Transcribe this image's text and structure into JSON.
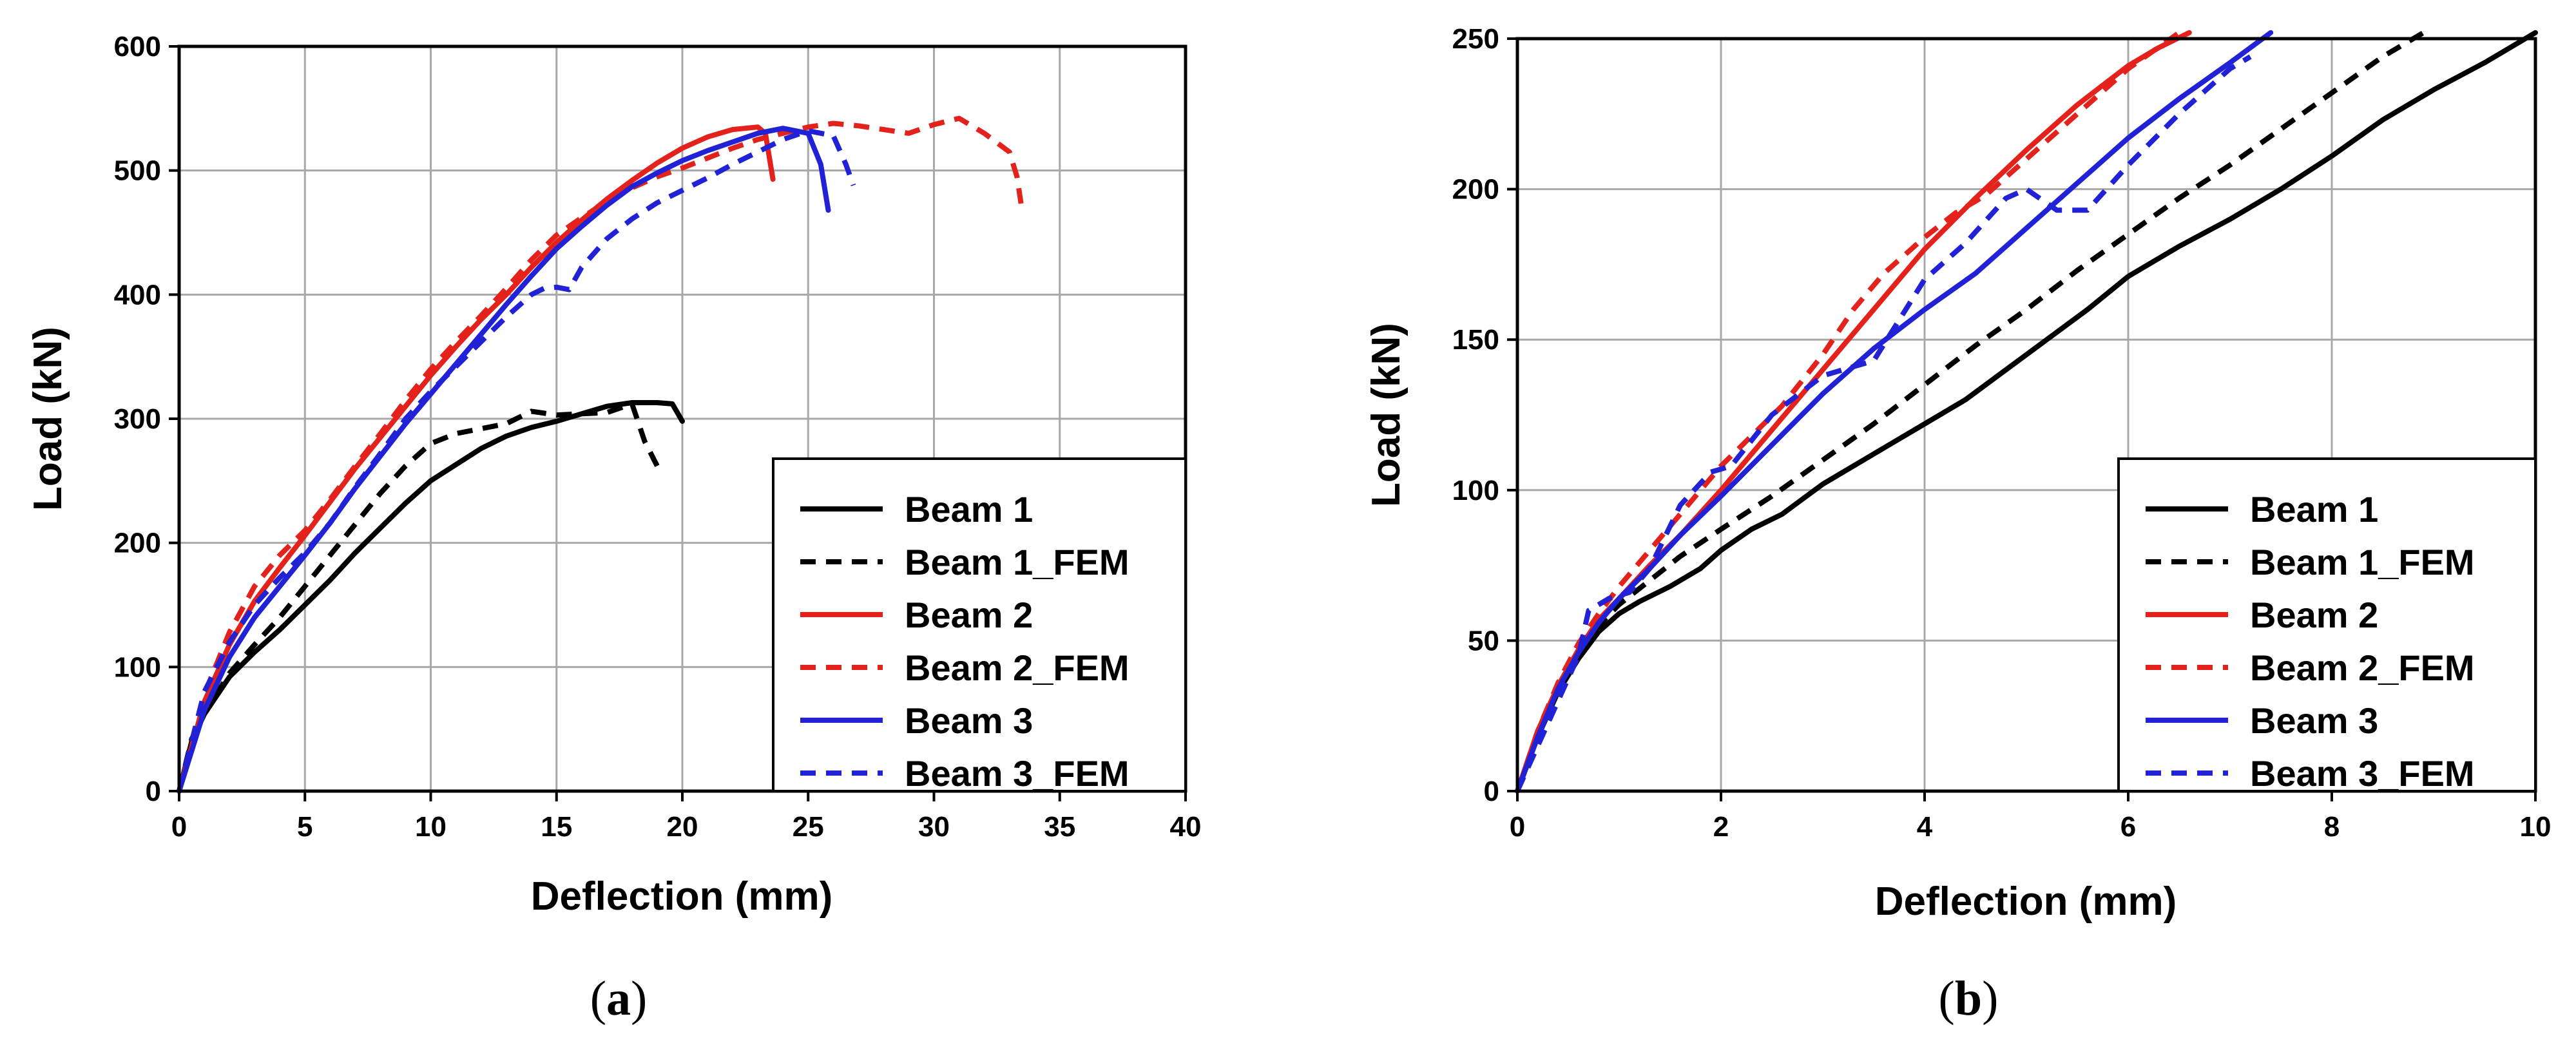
{
  "colors": {
    "black": "#000000",
    "red": "#e3221c",
    "blue": "#2122d6"
  },
  "panels": [
    {
      "label_open": "(",
      "label_letter": "a",
      "label_close": ")"
    },
    {
      "label_open": "(",
      "label_letter": "b",
      "label_close": ")"
    }
  ],
  "chart_data": [
    {
      "type": "line",
      "xlabel": "Deflection (mm)",
      "ylabel": "Load (kN)",
      "xlim": [
        0,
        40
      ],
      "ylim": [
        0,
        600
      ],
      "xticks": [
        0,
        5,
        10,
        15,
        20,
        25,
        30,
        35,
        40
      ],
      "yticks": [
        0,
        100,
        200,
        300,
        400,
        500,
        600
      ],
      "grid": true,
      "legend_position": "bottom-right",
      "series": [
        {
          "name": "Beam 1",
          "color": "#000000",
          "dash": "solid",
          "x": [
            0,
            0.5,
            1,
            2,
            3,
            4,
            5,
            6,
            7,
            8,
            9,
            10,
            11,
            12,
            13,
            14,
            15,
            16,
            17,
            18,
            19,
            19.6,
            20
          ],
          "y": [
            0,
            40,
            62,
            92,
            112,
            130,
            150,
            170,
            192,
            212,
            232,
            250,
            263,
            276,
            286,
            293,
            298,
            304,
            310,
            313,
            313,
            312,
            298
          ]
        },
        {
          "name": "Beam 1_FEM",
          "color": "#000000",
          "dash": "dashed",
          "x": [
            0,
            0.5,
            1,
            2,
            3,
            4,
            5,
            6,
            7,
            8,
            9,
            10,
            11,
            12,
            13,
            14,
            15,
            16,
            17,
            18,
            18.5,
            19
          ],
          "y": [
            0,
            42,
            62,
            95,
            118,
            140,
            165,
            190,
            215,
            240,
            262,
            280,
            288,
            292,
            296,
            306,
            303,
            304,
            305,
            312,
            282,
            262
          ]
        },
        {
          "name": "Beam 2",
          "color": "#e3221c",
          "dash": "solid",
          "x": [
            0,
            1,
            2,
            3,
            4,
            5,
            6,
            7,
            8,
            9,
            10,
            11,
            12,
            13,
            14,
            15,
            16,
            17,
            18,
            19,
            20,
            21,
            22,
            23,
            23.3,
            23.6
          ],
          "y": [
            0,
            72,
            118,
            153,
            180,
            206,
            233,
            260,
            285,
            310,
            335,
            358,
            380,
            400,
            422,
            442,
            460,
            477,
            492,
            506,
            518,
            527,
            533,
            535,
            530,
            493
          ]
        },
        {
          "name": "Beam 2_FEM",
          "color": "#e3221c",
          "dash": "dashed",
          "x": [
            0,
            1,
            2,
            3,
            4,
            5,
            6,
            7,
            8,
            9,
            10,
            11,
            12,
            13,
            14,
            15,
            16,
            17,
            18,
            19,
            20,
            21,
            22,
            23,
            24,
            25,
            26,
            27,
            28,
            29,
            30,
            31,
            32,
            33,
            33.3,
            33.5
          ],
          "y": [
            0,
            78,
            128,
            165,
            190,
            210,
            235,
            262,
            288,
            315,
            340,
            362,
            383,
            405,
            428,
            448,
            462,
            475,
            486,
            495,
            502,
            510,
            518,
            525,
            530,
            535,
            538,
            536,
            533,
            530,
            537,
            542,
            530,
            515,
            495,
            468
          ]
        },
        {
          "name": "Beam 3",
          "color": "#2122d6",
          "dash": "solid",
          "x": [
            0,
            1,
            2,
            3,
            4,
            5,
            6,
            7,
            8,
            9,
            10,
            11,
            12,
            13,
            14,
            15,
            16,
            17,
            18,
            19,
            20,
            21,
            22,
            23,
            24,
            25,
            25.5,
            25.8
          ],
          "y": [
            0,
            65,
            108,
            140,
            165,
            190,
            216,
            244,
            270,
            296,
            320,
            344,
            368,
            392,
            415,
            437,
            455,
            472,
            487,
            498,
            508,
            516,
            523,
            530,
            534,
            530,
            505,
            468
          ]
        },
        {
          "name": "Beam 3_FEM",
          "color": "#2122d6",
          "dash": "dashed",
          "x": [
            0,
            1,
            2,
            3,
            4,
            5,
            6,
            7,
            8,
            9,
            10,
            11,
            12,
            13,
            14,
            14.5,
            15,
            15.5,
            16,
            17,
            18,
            19,
            20,
            21,
            22,
            23,
            24,
            25,
            26,
            26.5,
            26.8
          ],
          "y": [
            0,
            80,
            120,
            150,
            172,
            192,
            216,
            245,
            272,
            300,
            322,
            342,
            362,
            382,
            400,
            405,
            406,
            404,
            422,
            445,
            461,
            474,
            484,
            494,
            505,
            515,
            525,
            532,
            528,
            505,
            488
          ]
        }
      ]
    },
    {
      "type": "line",
      "xlabel": "Deflection (mm)",
      "ylabel": "Load (kN)",
      "xlim": [
        0,
        10
      ],
      "ylim": [
        0,
        250
      ],
      "xticks": [
        0,
        2,
        4,
        6,
        8,
        10
      ],
      "yticks": [
        0,
        50,
        100,
        150,
        200,
        250
      ],
      "grid": true,
      "legend_position": "bottom-right",
      "series": [
        {
          "name": "Beam 1",
          "color": "#000000",
          "dash": "solid",
          "x": [
            0,
            0.2,
            0.4,
            0.6,
            0.8,
            1.0,
            1.2,
            1.5,
            1.8,
            2.0,
            2.3,
            2.6,
            2.8,
            3.0,
            3.5,
            4.0,
            4.4,
            4.8,
            5.2,
            5.6,
            6.0,
            6.5,
            7.0,
            7.5,
            8.0,
            8.5,
            9.0,
            9.5,
            10.0
          ],
          "y": [
            0,
            18,
            33,
            44,
            53,
            59,
            63,
            68,
            74,
            80,
            87,
            92,
            97,
            102,
            112,
            122,
            130,
            140,
            150,
            160,
            171,
            181,
            190,
            200,
            211,
            223,
            233,
            242,
            252
          ]
        },
        {
          "name": "Beam 1_FEM",
          "color": "#000000",
          "dash": "dashed",
          "x": [
            0,
            0.2,
            0.4,
            0.6,
            0.8,
            1.0,
            1.3,
            1.6,
            2.0,
            2.5,
            3.0,
            3.5,
            4.0,
            4.5,
            5.0,
            5.5,
            6.0,
            6.5,
            7.0,
            7.5,
            8.0,
            8.5,
            8.9
          ],
          "y": [
            0,
            18,
            33,
            45,
            55,
            62,
            70,
            78,
            87,
            98,
            110,
            122,
            135,
            148,
            160,
            173,
            185,
            197,
            208,
            220,
            232,
            244,
            252
          ]
        },
        {
          "name": "Beam 2",
          "color": "#e3221c",
          "dash": "solid",
          "x": [
            0,
            0.2,
            0.4,
            0.6,
            0.8,
            1.0,
            1.3,
            1.6,
            2.0,
            2.5,
            3.0,
            3.5,
            4.0,
            4.5,
            5.0,
            5.5,
            6.0,
            6.3,
            6.6
          ],
          "y": [
            0,
            20,
            35,
            47,
            57,
            64,
            75,
            85,
            100,
            120,
            140,
            160,
            180,
            197,
            213,
            228,
            241,
            247,
            252
          ]
        },
        {
          "name": "Beam 2_FEM",
          "color": "#e3221c",
          "dash": "dashed",
          "x": [
            0,
            0.2,
            0.4,
            0.6,
            0.8,
            1.0,
            1.3,
            1.6,
            2.0,
            2.3,
            2.6,
            3.0,
            3.3,
            3.6,
            4.0,
            4.3,
            4.6,
            5.0,
            5.5,
            6.0,
            6.5
          ],
          "y": [
            0,
            20,
            36,
            49,
            59,
            68,
            80,
            92,
            108,
            118,
            128,
            145,
            160,
            172,
            184,
            192,
            198,
            210,
            225,
            240,
            252
          ]
        },
        {
          "name": "Beam 3",
          "color": "#2122d6",
          "dash": "solid",
          "x": [
            0,
            0.2,
            0.4,
            0.6,
            0.8,
            1.0,
            1.3,
            1.6,
            2.0,
            2.5,
            3.0,
            3.5,
            4.0,
            4.5,
            5.0,
            5.5,
            6.0,
            6.5,
            7.0,
            7.4
          ],
          "y": [
            0,
            18,
            34,
            46,
            56,
            64,
            74,
            85,
            98,
            115,
            132,
            147,
            160,
            172,
            187,
            202,
            217,
            230,
            242,
            252
          ]
        },
        {
          "name": "Beam 3_FEM",
          "color": "#2122d6",
          "dash": "dashed",
          "x": [
            0,
            0.2,
            0.4,
            0.6,
            0.7,
            0.9,
            1.1,
            1.3,
            1.6,
            1.9,
            2.1,
            2.5,
            3.0,
            3.5,
            4.0,
            4.4,
            4.8,
            5.0,
            5.3,
            5.6,
            6.0,
            6.5,
            7.0,
            7.2
          ],
          "y": [
            0,
            15,
            30,
            45,
            60,
            64,
            66,
            74,
            95,
            106,
            108,
            125,
            138,
            143,
            170,
            182,
            197,
            200,
            193,
            193,
            208,
            225,
            240,
            244
          ]
        }
      ]
    }
  ]
}
